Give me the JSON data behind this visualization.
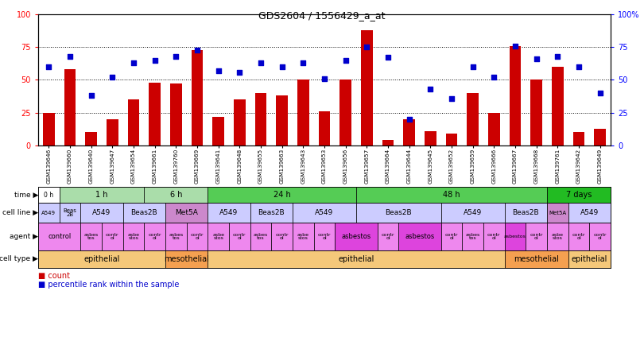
{
  "title": "GDS2604 / 1556429_a_at",
  "samples": [
    "GSM139646",
    "GSM139660",
    "GSM139640",
    "GSM139647",
    "GSM139654",
    "GSM139661",
    "GSM139760",
    "GSM139669",
    "GSM139641",
    "GSM139648",
    "GSM139655",
    "GSM139663",
    "GSM139643",
    "GSM139653",
    "GSM139656",
    "GSM139657",
    "GSM139664",
    "GSM139644",
    "GSM139645",
    "GSM139652",
    "GSM139659",
    "GSM139666",
    "GSM139667",
    "GSM139668",
    "GSM139761",
    "GSM139642",
    "GSM139649"
  ],
  "bar_values": [
    25,
    58,
    10,
    20,
    35,
    48,
    47,
    73,
    22,
    35,
    40,
    38,
    50,
    26,
    50,
    88,
    4,
    20,
    11,
    9,
    40,
    25,
    76,
    50,
    60,
    10,
    13
  ],
  "dot_values": [
    60,
    68,
    38,
    52,
    63,
    65,
    68,
    73,
    57,
    56,
    63,
    60,
    63,
    51,
    65,
    75,
    67,
    20,
    43,
    36,
    60,
    52,
    76,
    66,
    68,
    60,
    40
  ],
  "time_row": [
    {
      "label": "0 h",
      "start": 0,
      "end": 1,
      "color": "#ffffff"
    },
    {
      "label": "1 h",
      "start": 1,
      "end": 5,
      "color": "#aaddaa"
    },
    {
      "label": "6 h",
      "start": 5,
      "end": 8,
      "color": "#aaddaa"
    },
    {
      "label": "24 h",
      "start": 8,
      "end": 15,
      "color": "#55cc55"
    },
    {
      "label": "48 h",
      "start": 15,
      "end": 24,
      "color": "#55cc55"
    },
    {
      "label": "7 days",
      "start": 24,
      "end": 27,
      "color": "#22bb22"
    }
  ],
  "cell_line_row": [
    {
      "label": "A549",
      "start": 0,
      "end": 1,
      "color": "#ccccff"
    },
    {
      "label": "Beas\n2B",
      "start": 1,
      "end": 2,
      "color": "#ccccff"
    },
    {
      "label": "A549",
      "start": 2,
      "end": 4,
      "color": "#ccccff"
    },
    {
      "label": "Beas2B",
      "start": 4,
      "end": 6,
      "color": "#ccccff"
    },
    {
      "label": "Met5A",
      "start": 6,
      "end": 8,
      "color": "#cc88cc"
    },
    {
      "label": "A549",
      "start": 8,
      "end": 10,
      "color": "#ccccff"
    },
    {
      "label": "Beas2B",
      "start": 10,
      "end": 12,
      "color": "#ccccff"
    },
    {
      "label": "A549",
      "start": 12,
      "end": 15,
      "color": "#ccccff"
    },
    {
      "label": "Beas2B",
      "start": 15,
      "end": 19,
      "color": "#ccccff"
    },
    {
      "label": "A549",
      "start": 19,
      "end": 22,
      "color": "#ccccff"
    },
    {
      "label": "Beas2B",
      "start": 22,
      "end": 24,
      "color": "#ccccff"
    },
    {
      "label": "Met5A",
      "start": 24,
      "end": 25,
      "color": "#cc88cc"
    },
    {
      "label": "A549",
      "start": 25,
      "end": 27,
      "color": "#ccccff"
    }
  ],
  "agent_row": [
    {
      "label": "control",
      "start": 0,
      "end": 2,
      "color": "#ee88ee"
    },
    {
      "label": "asbes\ntos",
      "start": 2,
      "end": 3,
      "color": "#ee88ee"
    },
    {
      "label": "contr\nol",
      "start": 3,
      "end": 4,
      "color": "#ee88ee"
    },
    {
      "label": "asbe\nstos",
      "start": 4,
      "end": 5,
      "color": "#ee88ee"
    },
    {
      "label": "contr\nol",
      "start": 5,
      "end": 6,
      "color": "#ee88ee"
    },
    {
      "label": "asbes\ntos",
      "start": 6,
      "end": 7,
      "color": "#ee88ee"
    },
    {
      "label": "contr\nol",
      "start": 7,
      "end": 8,
      "color": "#ee88ee"
    },
    {
      "label": "asbe\nstos",
      "start": 8,
      "end": 9,
      "color": "#ee88ee"
    },
    {
      "label": "contr\nol",
      "start": 9,
      "end": 10,
      "color": "#ee88ee"
    },
    {
      "label": "asbes\ntos",
      "start": 10,
      "end": 11,
      "color": "#ee88ee"
    },
    {
      "label": "contr\nol",
      "start": 11,
      "end": 12,
      "color": "#ee88ee"
    },
    {
      "label": "asbe\nstos",
      "start": 12,
      "end": 13,
      "color": "#ee88ee"
    },
    {
      "label": "contr\nol",
      "start": 13,
      "end": 14,
      "color": "#ee88ee"
    },
    {
      "label": "asbestos",
      "start": 14,
      "end": 16,
      "color": "#dd44dd"
    },
    {
      "label": "contr\nol",
      "start": 16,
      "end": 17,
      "color": "#ee88ee"
    },
    {
      "label": "asbestos",
      "start": 17,
      "end": 19,
      "color": "#dd44dd"
    },
    {
      "label": "contr\nol",
      "start": 19,
      "end": 20,
      "color": "#ee88ee"
    },
    {
      "label": "asbes\ntos",
      "start": 20,
      "end": 21,
      "color": "#ee88ee"
    },
    {
      "label": "contr\nol",
      "start": 21,
      "end": 22,
      "color": "#ee88ee"
    },
    {
      "label": "asbestos",
      "start": 22,
      "end": 23,
      "color": "#dd44dd"
    },
    {
      "label": "contr\nol",
      "start": 23,
      "end": 24,
      "color": "#ee88ee"
    },
    {
      "label": "asbe\nstos",
      "start": 24,
      "end": 25,
      "color": "#ee88ee"
    },
    {
      "label": "contr\nol",
      "start": 25,
      "end": 26,
      "color": "#ee88ee"
    },
    {
      "label": "contr\nol",
      "start": 26,
      "end": 27,
      "color": "#ee88ee"
    }
  ],
  "cell_type_row": [
    {
      "label": "epithelial",
      "start": 0,
      "end": 6,
      "color": "#f5c87a"
    },
    {
      "label": "mesothelial",
      "start": 6,
      "end": 8,
      "color": "#f5a050"
    },
    {
      "label": "epithelial",
      "start": 8,
      "end": 22,
      "color": "#f5c87a"
    },
    {
      "label": "mesothelial",
      "start": 22,
      "end": 25,
      "color": "#f5a050"
    },
    {
      "label": "epithelial",
      "start": 25,
      "end": 27,
      "color": "#f5c87a"
    }
  ],
  "bar_color": "#cc0000",
  "dot_color": "#0000cc",
  "bg_color": "#ffffff"
}
